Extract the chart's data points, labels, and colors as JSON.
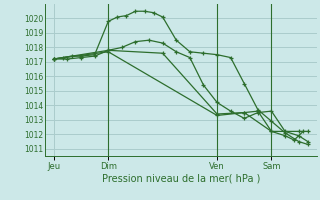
{
  "background_color": "#cce8e8",
  "grid_color": "#aacccc",
  "line_color": "#2d6e2d",
  "title": "Pression niveau de la mer( hPa )",
  "ylim": [
    1010.5,
    1021.0
  ],
  "yticks": [
    1011,
    1012,
    1013,
    1014,
    1015,
    1016,
    1017,
    1018,
    1019,
    1020
  ],
  "xlim": [
    -4,
    116
  ],
  "xtick_labels": [
    "Jeu",
    "Dim",
    "Ven",
    "Sam"
  ],
  "xtick_positions": [
    0,
    24,
    72,
    96
  ],
  "vline_positions": [
    24,
    72,
    96
  ],
  "series1_x": [
    0,
    4,
    8,
    12,
    18,
    24,
    28,
    32,
    36,
    40,
    44,
    48,
    54,
    60,
    66,
    72,
    78,
    84,
    90,
    96,
    102,
    108,
    112
  ],
  "series1_y": [
    1017.2,
    1017.3,
    1017.4,
    1017.4,
    1017.5,
    1019.8,
    1020.1,
    1020.2,
    1020.5,
    1020.5,
    1020.4,
    1020.1,
    1018.5,
    1017.7,
    1017.6,
    1017.5,
    1017.3,
    1015.5,
    1013.7,
    1012.9,
    1012.1,
    1011.5,
    1011.3
  ],
  "series2_x": [
    0,
    6,
    12,
    18,
    24,
    30,
    36,
    42,
    48,
    54,
    60,
    66,
    72,
    78,
    84,
    90,
    96,
    102,
    108,
    112
  ],
  "series2_y": [
    1017.2,
    1017.2,
    1017.3,
    1017.4,
    1017.8,
    1018.0,
    1018.4,
    1018.5,
    1018.3,
    1017.7,
    1017.3,
    1015.4,
    1014.2,
    1013.6,
    1013.1,
    1013.5,
    1013.6,
    1012.2,
    1011.9,
    1011.5
  ],
  "series3_x": [
    0,
    24,
    48,
    72,
    84,
    90,
    96,
    102,
    106,
    110
  ],
  "series3_y": [
    1017.2,
    1017.8,
    1017.6,
    1013.4,
    1013.5,
    1013.6,
    1012.2,
    1011.9,
    1011.6,
    1012.2
  ],
  "series4_x": [
    0,
    24,
    72,
    84,
    96,
    108,
    112
  ],
  "series4_y": [
    1017.2,
    1017.7,
    1013.3,
    1013.5,
    1012.2,
    1012.2,
    1012.2
  ]
}
